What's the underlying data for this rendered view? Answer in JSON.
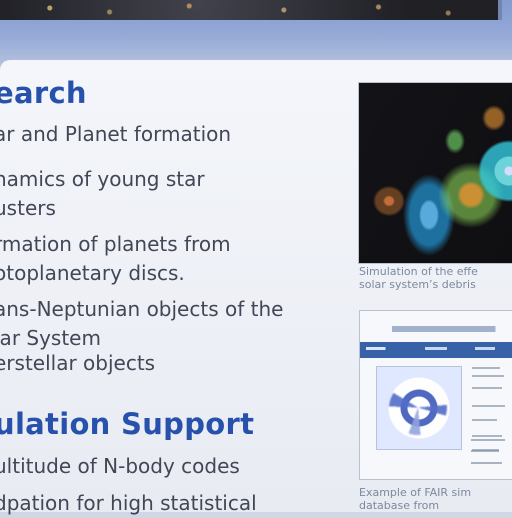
{
  "top_banner": {
    "image": "astronomy-banner"
  },
  "left_panel": {
    "research_title": "earch",
    "research_items": [
      "ar and Planet formation",
      "namics of young star\nusters",
      "rmation of planets from\notoplanetary discs.",
      "ans-Neptunian objects of the\nlar System",
      "erstellar objects"
    ],
    "support_title": "ulation Support",
    "support_items": [
      "ultitude of N-body codes",
      "dpation for high statistical"
    ]
  },
  "right_panel": {
    "caption_1": "Simulation of the effe\nsolar system’s debris",
    "caption_2": "Example of FAIR sim\ndatabase from"
  },
  "colors": {
    "heading": "#1f4aa7",
    "body_text": "#3b4050",
    "caption_text": "#76849a",
    "top_gradient": "#7f97cf"
  }
}
